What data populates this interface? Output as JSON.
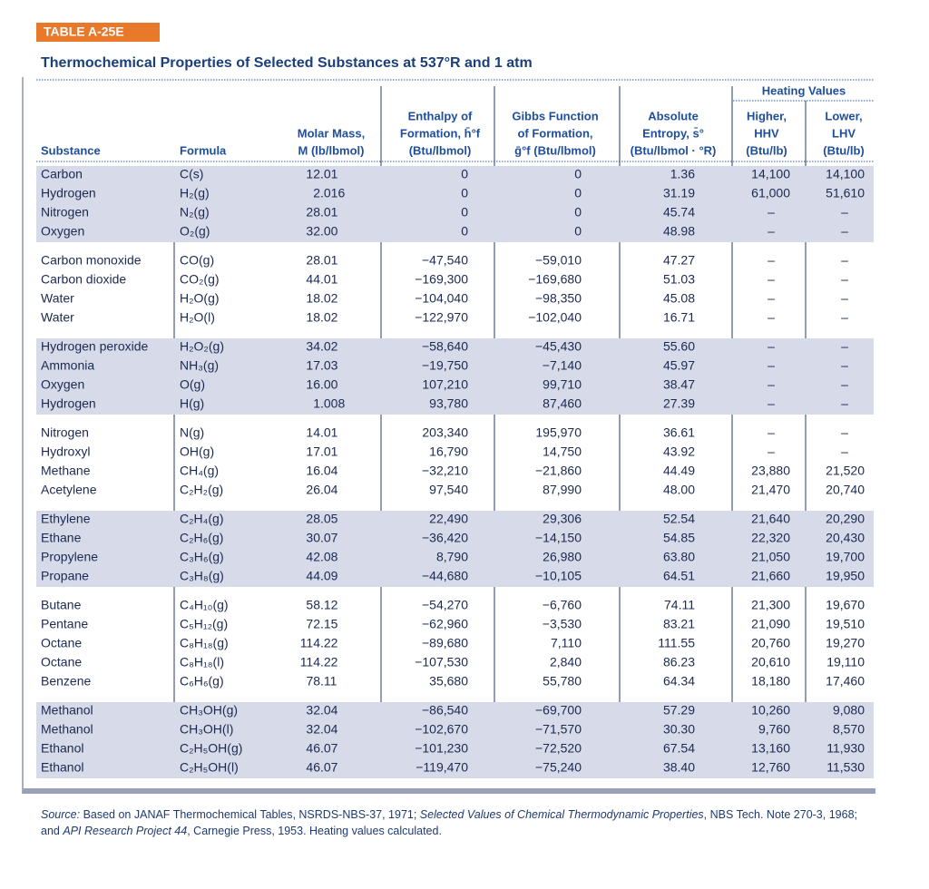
{
  "table_label": "TABLE A-25E",
  "title": "Thermochemical Properties of Selected Substances at 537°R and 1 atm",
  "heating_values_header": "Heating Values",
  "columns": [
    [
      "Substance"
    ],
    [
      "Formula"
    ],
    [
      "Molar Mass,",
      "M (lb/lbmol)"
    ],
    [
      "Enthalpy of",
      "Formation, h̄°f",
      "(Btu/lbmol)"
    ],
    [
      "Gibbs Function",
      "of Formation,",
      "ḡ°f (Btu/lbmol)"
    ],
    [
      "Absolute",
      "Entropy, s̄°",
      "(Btu/lbmol · °R)"
    ],
    [
      "Higher,",
      "HHV",
      "(Btu/lb)"
    ],
    [
      "Lower,",
      "LHV",
      "(Btu/lb)"
    ]
  ],
  "groups": [
    [
      [
        "Carbon",
        "C(s)",
        "12.01",
        "0",
        "0",
        "1.36",
        "14,100",
        "14,100"
      ],
      [
        "Hydrogen",
        "H₂(g)",
        "2.016",
        "0",
        "0",
        "31.19",
        "61,000",
        "51,610"
      ],
      [
        "Nitrogen",
        "N₂(g)",
        "28.01",
        "0",
        "0",
        "45.74",
        "–",
        "–"
      ],
      [
        "Oxygen",
        "O₂(g)",
        "32.00",
        "0",
        "0",
        "48.98",
        "–",
        "–"
      ]
    ],
    [
      [
        "Carbon monoxide",
        "CO(g)",
        "28.01",
        "−47,540",
        "−59,010",
        "47.27",
        "–",
        "–"
      ],
      [
        "Carbon dioxide",
        "CO₂(g)",
        "44.01",
        "−169,300",
        "−169,680",
        "51.03",
        "–",
        "–"
      ],
      [
        "Water",
        "H₂O(g)",
        "18.02",
        "−104,040",
        "−98,350",
        "45.08",
        "–",
        "–"
      ],
      [
        "Water",
        "H₂O(l)",
        "18.02",
        "−122,970",
        "−102,040",
        "16.71",
        "–",
        "–"
      ]
    ],
    [
      [
        "Hydrogen peroxide",
        "H₂O₂(g)",
        "34.02",
        "−58,640",
        "−45,430",
        "55.60",
        "–",
        "–"
      ],
      [
        "Ammonia",
        "NH₃(g)",
        "17.03",
        "−19,750",
        "−7,140",
        "45.97",
        "–",
        "–"
      ],
      [
        "Oxygen",
        "O(g)",
        "16.00",
        "107,210",
        "99,710",
        "38.47",
        "–",
        "–"
      ],
      [
        "Hydrogen",
        "H(g)",
        "1.008",
        "93,780",
        "87,460",
        "27.39",
        "–",
        "–"
      ]
    ],
    [
      [
        "Nitrogen",
        "N(g)",
        "14.01",
        "203,340",
        "195,970",
        "36.61",
        "–",
        "–"
      ],
      [
        "Hydroxyl",
        "OH(g)",
        "17.01",
        "16,790",
        "14,750",
        "43.92",
        "–",
        "–"
      ],
      [
        "Methane",
        "CH₄(g)",
        "16.04",
        "−32,210",
        "−21,860",
        "44.49",
        "23,880",
        "21,520"
      ],
      [
        "Acetylene",
        "C₂H₂(g)",
        "26.04",
        "97,540",
        "87,990",
        "48.00",
        "21,470",
        "20,740"
      ]
    ],
    [
      [
        "Ethylene",
        "C₂H₄(g)",
        "28.05",
        "22,490",
        "29,306",
        "52.54",
        "21,640",
        "20,290"
      ],
      [
        "Ethane",
        "C₂H₆(g)",
        "30.07",
        "−36,420",
        "−14,150",
        "54.85",
        "22,320",
        "20,430"
      ],
      [
        "Propylene",
        "C₃H₆(g)",
        "42.08",
        "8,790",
        "26,980",
        "63.80",
        "21,050",
        "19,700"
      ],
      [
        "Propane",
        "C₃H₈(g)",
        "44.09",
        "−44,680",
        "−10,105",
        "64.51",
        "21,660",
        "19,950"
      ]
    ],
    [
      [
        "Butane",
        "C₄H₁₀(g)",
        "58.12",
        "−54,270",
        "−6,760",
        "74.11",
        "21,300",
        "19,670"
      ],
      [
        "Pentane",
        "C₅H₁₂(g)",
        "72.15",
        "−62,960",
        "−3,530",
        "83.21",
        "21,090",
        "19,510"
      ],
      [
        "Octane",
        "C₈H₁₈(g)",
        "114.22",
        "−89,680",
        "7,110",
        "111.55",
        "20,760",
        "19,270"
      ],
      [
        "Octane",
        "C₈H₁₈(l)",
        "114.22",
        "−107,530",
        "2,840",
        "86.23",
        "20,610",
        "19,110"
      ],
      [
        "Benzene",
        "C₆H₆(g)",
        "78.11",
        "35,680",
        "55,780",
        "64.34",
        "18,180",
        "17,460"
      ]
    ],
    [
      [
        "Methanol",
        "CH₃OH(g)",
        "32.04",
        "−86,540",
        "−69,700",
        "57.29",
        "10,260",
        "9,080"
      ],
      [
        "Methanol",
        "CH₃OH(l)",
        "32.04",
        "−102,670",
        "−71,570",
        "30.30",
        "9,760",
        "8,570"
      ],
      [
        "Ethanol",
        "C₂H₅OH(g)",
        "46.07",
        "−101,230",
        "−72,520",
        "67.54",
        "13,160",
        "11,930"
      ],
      [
        "Ethanol",
        "C₂H₅OH(l)",
        "46.07",
        "−119,470",
        "−75,240",
        "38.40",
        "12,760",
        "11,530"
      ]
    ]
  ],
  "source": [
    "Source:",
    " Based on JANAF Thermochemical Tables, NSRDS-NBS-37, 1971; ",
    "Selected Values of Chemical Thermodynamic Properties",
    ", NBS Tech. Note 270-3, 1968; and ",
    "API Research Project 44",
    ", Carnegie Press, 1953. Heating values calculated."
  ]
}
